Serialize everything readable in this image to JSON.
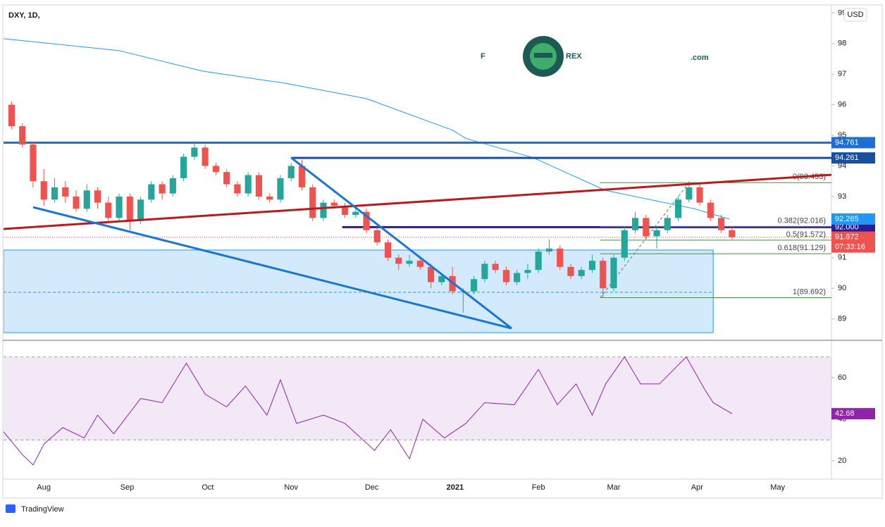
{
  "logo": [
    "F",
    "REX",
    ".com"
  ],
  "footer": "TradingView",
  "chart_data": [
    {
      "type": "candlestick",
      "title": "DXY, 1D,",
      "currency": "USD",
      "x": [
        -12,
        -8,
        -4,
        0,
        4,
        8,
        12,
        16,
        20,
        24,
        28,
        32,
        36,
        40,
        44,
        48,
        52,
        56,
        60,
        64,
        68,
        72,
        76,
        80,
        84,
        88,
        92,
        96,
        100,
        104,
        108,
        112,
        116,
        120,
        124,
        128,
        132,
        136,
        140,
        144,
        148,
        152,
        156,
        160,
        164,
        168,
        172,
        176,
        180,
        184,
        188,
        192,
        196,
        200,
        204,
        208,
        212,
        216,
        220,
        224,
        228,
        232,
        236,
        240,
        244,
        248,
        252,
        256
      ],
      "open": [
        96.0,
        95.3,
        94.7,
        93.5,
        92.9,
        93.3,
        93.0,
        92.6,
        93.2,
        92.8,
        92.3,
        93.0,
        92.2,
        92.9,
        93.4,
        93.1,
        93.6,
        94.3,
        94.6,
        94.0,
        93.8,
        93.4,
        93.1,
        93.7,
        93.0,
        92.9,
        93.6,
        94.0,
        93.3,
        92.3,
        92.8,
        92.7,
        92.4,
        92.5,
        91.9,
        91.5,
        91.0,
        90.8,
        90.9,
        90.7,
        90.2,
        90.4,
        89.9,
        89.9,
        90.3,
        90.8,
        90.6,
        90.2,
        90.5,
        90.6,
        91.2,
        91.3,
        90.7,
        90.4,
        90.6,
        90.9,
        90.0,
        91.0,
        91.9,
        92.3,
        91.7,
        91.9,
        92.3,
        92.9,
        93.3,
        92.8,
        92.3,
        91.9
      ],
      "high": [
        96.1,
        95.4,
        94.8,
        93.9,
        93.6,
        93.5,
        93.2,
        93.4,
        93.3,
        93.0,
        93.1,
        93.1,
        93.0,
        93.5,
        93.5,
        93.7,
        94.4,
        94.8,
        94.7,
        94.1,
        93.9,
        93.5,
        93.8,
        93.8,
        93.1,
        93.7,
        94.1,
        94.2,
        93.4,
        92.9,
        92.9,
        92.8,
        92.6,
        92.6,
        92.0,
        91.6,
        91.1,
        91.1,
        91.0,
        90.8,
        90.5,
        90.7,
        90.0,
        90.4,
        90.9,
        90.9,
        90.7,
        90.6,
        90.8,
        91.3,
        91.6,
        91.4,
        90.8,
        90.7,
        91.1,
        91.0,
        91.1,
        92.0,
        92.5,
        92.4,
        92.0,
        92.4,
        93.0,
        93.5,
        93.4,
        92.9,
        92.4,
        92.0
      ],
      "low": [
        95.2,
        94.6,
        93.3,
        92.7,
        92.8,
        92.8,
        92.5,
        92.5,
        92.6,
        92.2,
        92.2,
        91.9,
        92.1,
        92.8,
        92.9,
        93.0,
        93.5,
        94.2,
        93.9,
        93.7,
        93.3,
        93.0,
        93.0,
        92.9,
        92.8,
        92.8,
        93.5,
        93.2,
        92.2,
        92.2,
        92.6,
        92.3,
        92.3,
        91.8,
        91.4,
        90.9,
        90.6,
        90.7,
        90.6,
        90.0,
        90.1,
        89.8,
        89.2,
        89.8,
        90.2,
        90.5,
        90.1,
        90.1,
        90.3,
        90.5,
        91.1,
        90.6,
        90.3,
        90.3,
        90.5,
        89.7,
        89.9,
        90.9,
        91.8,
        91.6,
        91.3,
        91.8,
        92.2,
        92.8,
        92.7,
        92.2,
        91.8,
        91.6
      ],
      "close": [
        95.3,
        94.7,
        93.5,
        92.9,
        93.3,
        93.0,
        92.6,
        93.2,
        92.8,
        92.3,
        93.0,
        92.2,
        92.9,
        93.4,
        93.1,
        93.6,
        94.3,
        94.6,
        94.0,
        93.8,
        93.4,
        93.1,
        93.7,
        93.0,
        92.9,
        93.6,
        94.0,
        93.3,
        92.3,
        92.8,
        92.7,
        92.4,
        92.5,
        91.9,
        91.5,
        91.0,
        90.8,
        90.9,
        90.7,
        90.2,
        90.4,
        89.9,
        89.9,
        90.3,
        90.8,
        90.6,
        90.2,
        90.5,
        90.6,
        91.2,
        91.3,
        90.7,
        90.4,
        90.6,
        90.9,
        90.0,
        91.0,
        91.9,
        92.3,
        91.7,
        91.9,
        92.3,
        92.9,
        93.3,
        92.8,
        92.3,
        91.9,
        91.672
      ],
      "up_color": "#26a69a",
      "down_color": "#ef5350",
      "xlim": [
        -15,
        293
      ],
      "ylim": [
        88.3,
        99.24
      ],
      "yticks": [
        89,
        90,
        91,
        92,
        93,
        94,
        95,
        96,
        97,
        98,
        99
      ],
      "xticks": [
        {
          "value": 0,
          "label": "Aug"
        },
        {
          "value": 31,
          "label": "Sep"
        },
        {
          "value": 61,
          "label": "Oct"
        },
        {
          "value": 92,
          "label": "Nov"
        },
        {
          "value": 122,
          "label": "Dec"
        },
        {
          "value": 153,
          "label": "2021"
        },
        {
          "value": 184,
          "label": "Feb"
        },
        {
          "value": 212,
          "label": "Mar"
        },
        {
          "value": 243,
          "label": "Apr"
        },
        {
          "value": 273,
          "label": "May"
        }
      ],
      "moving_average": {
        "x": [
          -15,
          28,
          59,
          90,
          120,
          152,
          157,
          182,
          209,
          242,
          255
        ],
        "values": [
          98.16,
          97.77,
          97.1,
          96.7,
          96.2,
          95.17,
          94.9,
          94.27,
          93.2,
          92.6,
          92.265
        ],
        "color": "#2196f3"
      },
      "trend_lines": [
        {
          "x": [
            -15,
            293
          ],
          "y": [
            91.94,
            93.71
          ],
          "color": "#b71c1c"
        },
        {
          "x": [
            -4,
            174
          ],
          "y": [
            92.65,
            88.69
          ],
          "color": "#1976d2"
        },
        {
          "x": [
            92,
            174
          ],
          "y": [
            94.27,
            88.69
          ],
          "color": "#1976d2"
        }
      ],
      "range_box": {
        "x": [
          -15,
          249
        ],
        "y": [
          88.55,
          91.25
        ],
        "mid": 89.87,
        "color": "#2196f3"
      },
      "levels": [
        {
          "price": 94.761,
          "start": -15,
          "color": "#1e6fd0"
        },
        {
          "price": 94.261,
          "start": 92,
          "color": "#1a4ea0"
        },
        {
          "price": {
            "value": 92,
            "label": "92.000"
          },
          "start": 111,
          "color": "#311b92"
        }
      ],
      "last_price": {
        "value": 91.672,
        "countdown": "07:33:16",
        "color": "#ef5350"
      },
      "fib": {
        "x": [
          207,
          293
        ],
        "diagonal_x": [
          207,
          240
        ],
        "color": "#4c8c4c",
        "levels": [
          {
            "label": "0(93.453)",
            "value": 93.453
          },
          {
            "label": "0.382(92.016)",
            "value": 92.016
          },
          {
            "label": "0.5(91.572)",
            "value": 91.572
          },
          {
            "label": "0.618(91.129)",
            "value": 91.129
          },
          {
            "label": "1(89.692)",
            "value": 89.692
          }
        ]
      }
    },
    {
      "type": "line",
      "x": [
        -15,
        -8,
        -4,
        0,
        7,
        15,
        20,
        26,
        36,
        44,
        53,
        60,
        68,
        75,
        83,
        88,
        94,
        104,
        112,
        123,
        129,
        136,
        141,
        149,
        157,
        164,
        175,
        184,
        191,
        198,
        204,
        209,
        216,
        222,
        229,
        239,
        246,
        249,
        256
      ],
      "values": [
        34,
        23,
        18,
        28,
        36,
        31,
        42,
        33,
        50,
        48,
        67,
        52,
        46,
        56,
        42,
        59,
        38,
        42,
        38,
        25,
        35,
        21,
        40,
        31,
        38,
        48,
        47,
        64,
        47,
        57,
        42,
        57,
        70,
        57,
        57,
        70,
        54,
        48,
        42.68
      ],
      "color": "#8e24aa",
      "xlim": [
        -15,
        293
      ],
      "ylim": [
        11.2,
        78
      ],
      "yticks": [
        20,
        40,
        60
      ],
      "band": [
        30,
        70
      ]
    }
  ]
}
